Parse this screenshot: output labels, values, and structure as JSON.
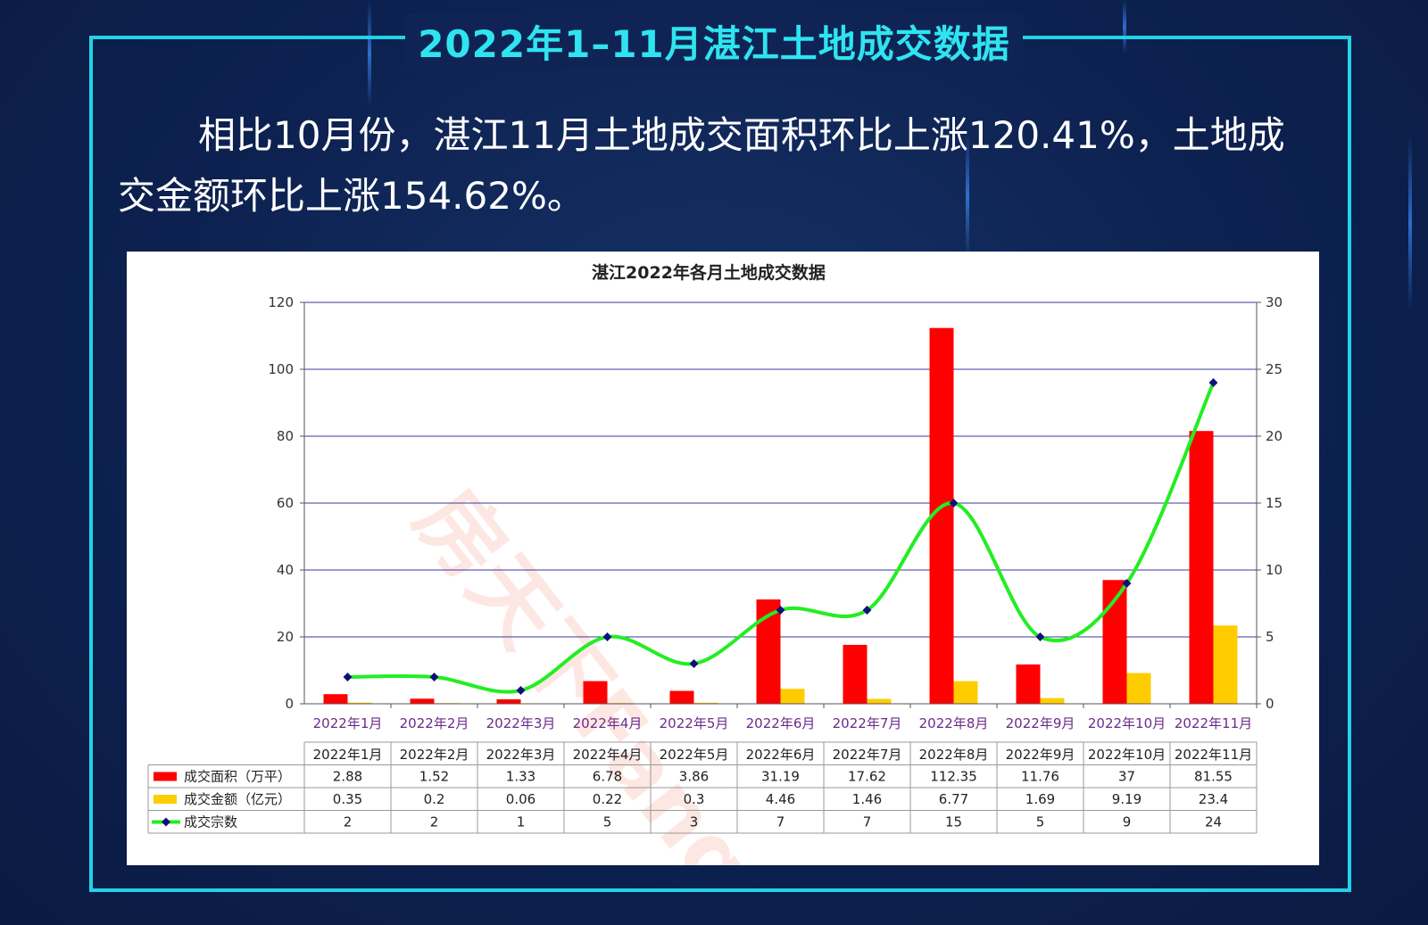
{
  "header": {
    "title": "2022年1–11月湛江土地成交数据"
  },
  "summary": {
    "text": "相比10月份，湛江11月土地成交面积环比上涨120.41%，土地成交金额环比上涨154.62%。"
  },
  "watermark": "房天下Fang",
  "colors": {
    "frame": "#22d3e6",
    "title": "#2fe4f0",
    "area": "#ff0000",
    "amount": "#ffcc00",
    "count": "#22ee22"
  },
  "chart_data": {
    "type": "bar",
    "title": "湛江2022年各月土地成交数据",
    "categories": [
      "2022年1月",
      "2022年2月",
      "2022年3月",
      "2022年4月",
      "2022年5月",
      "2022年6月",
      "2022年7月",
      "2022年8月",
      "2022年9月",
      "2022年10月",
      "2022年11月"
    ],
    "y_left": {
      "min": 0,
      "max": 120,
      "ticks": [
        "0",
        "20",
        "40",
        "60",
        "80",
        "100",
        "120"
      ]
    },
    "y_right": {
      "min": 0,
      "max": 30,
      "ticks": [
        "0",
        "5",
        "10",
        "15",
        "20",
        "25",
        "30"
      ]
    },
    "series": [
      {
        "name": "成交面积（万平）",
        "type": "bar",
        "axis": "left",
        "color": "#ff0000",
        "values": [
          2.88,
          1.52,
          1.33,
          6.78,
          3.86,
          31.19,
          17.62,
          112.35,
          11.76,
          37,
          81.55
        ],
        "labels": [
          "2.88",
          "1.52",
          "1.33",
          "6.78",
          "3.86",
          "31.19",
          "17.62",
          "112.35",
          "11.76",
          "37",
          "81.55"
        ]
      },
      {
        "name": "成交金额（亿元）",
        "type": "bar",
        "axis": "left",
        "color": "#ffcc00",
        "values": [
          0.35,
          0.2,
          0.06,
          0.22,
          0.3,
          4.46,
          1.46,
          6.77,
          1.69,
          9.19,
          23.4
        ],
        "labels": [
          "0.35",
          "0.2",
          "0.06",
          "0.22",
          "0.3",
          "4.46",
          "1.46",
          "6.77",
          "1.69",
          "9.19",
          "23.4"
        ]
      },
      {
        "name": "成交宗数",
        "type": "line",
        "axis": "right",
        "color": "#22ee22",
        "values": [
          2,
          2,
          1,
          5,
          3,
          7,
          7,
          15,
          5,
          9,
          24
        ],
        "labels": [
          "2",
          "2",
          "1",
          "5",
          "3",
          "7",
          "7",
          "15",
          "5",
          "9",
          "24"
        ]
      }
    ],
    "grid": true,
    "legend": "data-table"
  }
}
